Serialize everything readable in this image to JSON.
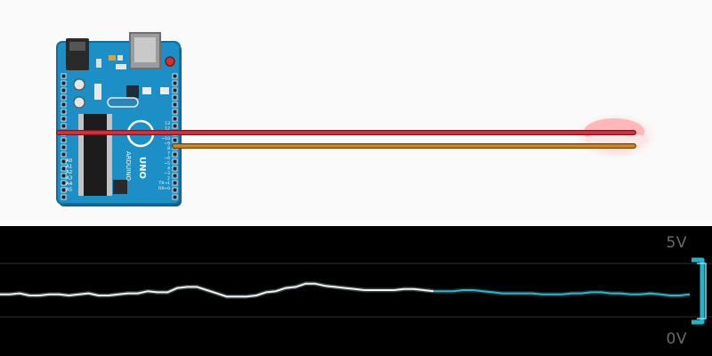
{
  "board": {
    "brand": "ARDUINO",
    "model": "UNO",
    "analog_pins": [
      "A0",
      "A1",
      "A2",
      "A3",
      "A4",
      "A5"
    ],
    "digital_pins": [
      "13",
      "12",
      "~11",
      "~10",
      "~9",
      "8",
      "7",
      "~6",
      "~5",
      "4",
      "~3",
      "2",
      "TX→1",
      "RX←0"
    ]
  },
  "wires": [
    {
      "name": "red-wire",
      "color": "#d8323c"
    },
    {
      "name": "orange-wire",
      "color": "#d4891c"
    }
  ],
  "sensor": {
    "name": "piezo-disc"
  },
  "scope": {
    "top_label": "5V",
    "bottom_label": "0V",
    "trace_color_fresh": "#eaf6f8",
    "trace_color_old": "#2fb7c8",
    "signal": {
      "ymin": 0,
      "ymax": 5,
      "values": [
        2.1,
        2.1,
        2.2,
        2.0,
        2.0,
        2.1,
        2.1,
        2.0,
        2.1,
        2.2,
        2.0,
        2.0,
        2.1,
        2.2,
        2.2,
        2.4,
        2.3,
        2.3,
        2.7,
        2.8,
        2.8,
        2.5,
        2.2,
        1.9,
        1.9,
        1.9,
        2.0,
        2.3,
        2.4,
        2.7,
        2.8,
        3.1,
        3.1,
        2.9,
        2.8,
        2.7,
        2.6,
        2.5,
        2.5,
        2.5,
        2.5,
        2.6,
        2.6,
        2.5,
        2.4,
        2.4,
        2.4,
        2.5,
        2.5,
        2.4,
        2.3,
        2.2,
        2.2,
        2.2,
        2.2,
        2.1,
        2.1,
        2.1,
        2.2,
        2.2,
        2.3,
        2.3,
        2.2,
        2.2,
        2.1,
        2.1,
        2.2,
        2.1,
        2.0,
        2.0,
        2.1
      ]
    }
  }
}
